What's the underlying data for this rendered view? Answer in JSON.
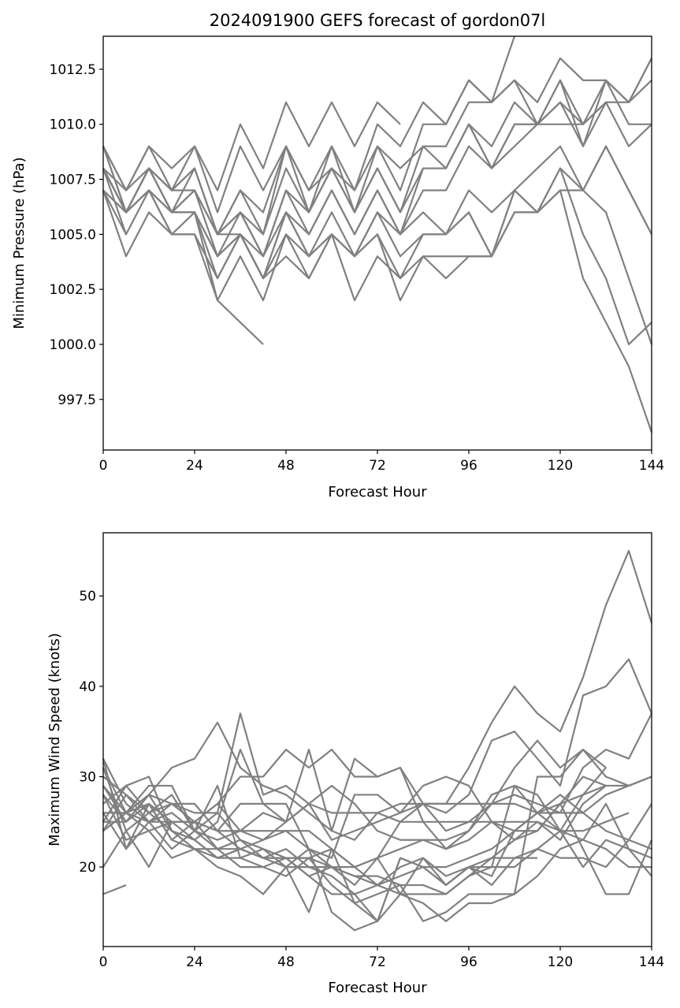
{
  "chart_data": [
    {
      "type": "line",
      "title": "2024091900 GEFS forecast of gordon07l",
      "xlabel": "Forecast Hour",
      "ylabel": "Minimum Pressure (hPa)",
      "xlim": [
        0,
        144
      ],
      "ylim": [
        995.2,
        1014.0
      ],
      "xticks": [
        0,
        24,
        48,
        72,
        96,
        120,
        144
      ],
      "yticks": [
        997.5,
        1000.0,
        1002.5,
        1005.0,
        1007.5,
        1010.0,
        1012.5
      ],
      "xtick_labels": [
        "0",
        "24",
        "48",
        "72",
        "96",
        "120",
        "144"
      ],
      "ytick_labels": [
        "997.5",
        "1000.0",
        "1002.5",
        "1005.0",
        "1007.5",
        "1010.0",
        "1012.5"
      ],
      "line_color": "#808080",
      "x": [
        0,
        6,
        12,
        18,
        24,
        30,
        36,
        42,
        48,
        54,
        60,
        66,
        72,
        78,
        84,
        90,
        96,
        102,
        108,
        114,
        120,
        126,
        132,
        138,
        144
      ],
      "series": [
        {
          "values": [
            1009,
            1007,
            1009,
            1008,
            1009,
            1007,
            1010,
            1008,
            1011,
            1009,
            1011,
            1009,
            1011,
            1010,
            null,
            null,
            null,
            null,
            null,
            null,
            null,
            null,
            null,
            null,
            null
          ]
        },
        {
          "values": [
            1009,
            1007,
            1009,
            1007,
            1009,
            1006,
            1009,
            1007,
            1009,
            1007,
            1009,
            1007,
            1010,
            1009,
            1011,
            1010,
            1012,
            1011,
            1014,
            null,
            null,
            null,
            null,
            null,
            null
          ]
        },
        {
          "values": [
            1008,
            1007,
            1008,
            1007,
            1008,
            1005,
            1007,
            1005,
            1009,
            1006,
            1009,
            1006,
            1009,
            1007,
            1010,
            1010,
            1012,
            1011,
            1012,
            1011,
            1013,
            1012,
            1012,
            1011,
            1013
          ]
        },
        {
          "values": [
            1009,
            1006,
            1008,
            1007,
            1008,
            1005,
            1007,
            1006,
            1009,
            1007,
            1008,
            1007,
            1009,
            1008,
            1009,
            1009,
            1011,
            1011,
            1012,
            1010,
            1012,
            1010,
            1012,
            1010,
            1010
          ]
        },
        {
          "values": [
            1008,
            1006,
            1008,
            1006,
            1008,
            1005,
            1006,
            1005,
            1008,
            1006,
            1008,
            1006,
            1008,
            1006,
            1009,
            1008,
            1010,
            1009,
            1011,
            1010,
            1011,
            1010,
            1011,
            1011,
            1012
          ]
        },
        {
          "values": [
            1008,
            1006,
            1008,
            1006,
            1007,
            1005,
            1006,
            1004,
            1007,
            1006,
            1008,
            1006,
            1008,
            1006,
            1008,
            1008,
            1010,
            1008,
            1010,
            1010,
            1011,
            1009,
            1012,
            1011,
            1013
          ]
        },
        {
          "values": [
            1007,
            1006,
            1007,
            1006,
            1007,
            1004,
            1006,
            1004,
            1007,
            1005,
            1007,
            1005,
            1007,
            1005,
            1007,
            1007,
            1009,
            1008,
            1010,
            1010,
            1012,
            1009,
            1011,
            1009,
            1010
          ]
        },
        {
          "values": [
            1008,
            1005,
            1007,
            1006,
            1006,
            1004,
            1005,
            1004,
            1006,
            1005,
            1007,
            1005,
            1007,
            1005,
            1008,
            1008,
            1010,
            1008,
            1009,
            1010,
            1010,
            1010,
            1011,
            null,
            null
          ]
        },
        {
          "values": [
            1007,
            1004,
            1006,
            1005,
            1005,
            1003,
            1005,
            1003,
            1006,
            1004,
            1006,
            1004,
            1006,
            1005,
            1006,
            1005,
            1007,
            1006,
            1007,
            1008,
            1009,
            1007,
            1009,
            1007,
            1005
          ]
        },
        {
          "values": [
            1008,
            1006,
            1007,
            1006,
            1006,
            1003,
            1005,
            1003,
            1005,
            1004,
            1005,
            1004,
            1006,
            1004,
            1005,
            1005,
            1006,
            1004,
            1007,
            1006,
            1008,
            1005,
            1003,
            1000,
            1001
          ]
        },
        {
          "values": [
            1007,
            1006,
            1007,
            1005,
            1006,
            1002,
            1004,
            1002,
            1005,
            1003,
            1005,
            1002,
            1004,
            1003,
            1005,
            1005,
            1006,
            1004,
            1006,
            1006,
            1007,
            1003,
            1001,
            999,
            996
          ]
        },
        {
          "values": [
            1008,
            1006,
            1007,
            1005,
            1005,
            1002,
            1001,
            1000,
            null,
            null,
            null,
            null,
            null,
            null,
            null,
            null,
            null,
            null,
            null,
            null,
            null,
            null,
            null,
            null,
            null
          ]
        },
        {
          "values": [
            1007,
            1005,
            null,
            null,
            null,
            null,
            null,
            null,
            null,
            null,
            null,
            null,
            null,
            null,
            null,
            null,
            null,
            null,
            null,
            null,
            null,
            null,
            null,
            null,
            null
          ]
        },
        {
          "values": [
            1008,
            1006,
            1008,
            1006,
            1006,
            1004,
            1005,
            1003,
            1006,
            1004,
            1005,
            1004,
            1005,
            1002,
            1004,
            1003,
            1004,
            1004,
            1007,
            1006,
            1008,
            1007,
            1006,
            1003,
            1000
          ]
        },
        {
          "values": [
            1009,
            1006,
            1008,
            1007,
            1007,
            1005,
            1005,
            1003,
            1004,
            1003,
            1005,
            1004,
            1005,
            1003,
            1004,
            1004,
            1004,
            1004,
            1006,
            1006,
            1007,
            1007,
            1009,
            1007,
            1005
          ]
        }
      ]
    },
    {
      "type": "line",
      "title": "",
      "xlabel": "Forecast Hour",
      "ylabel": "Maximum Wind Speed (knots)",
      "xlim": [
        0,
        144
      ],
      "ylim": [
        11.2,
        57.0
      ],
      "xticks": [
        0,
        24,
        48,
        72,
        96,
        120,
        144
      ],
      "yticks": [
        20,
        30,
        40,
        50
      ],
      "xtick_labels": [
        "0",
        "24",
        "48",
        "72",
        "96",
        "120",
        "144"
      ],
      "ytick_labels": [
        "20",
        "30",
        "40",
        "50"
      ],
      "line_color": "#808080",
      "x": [
        0,
        6,
        12,
        18,
        24,
        30,
        36,
        42,
        48,
        54,
        60,
        66,
        72,
        78,
        84,
        90,
        96,
        102,
        108,
        114,
        120,
        126,
        132,
        138,
        144
      ],
      "series": [
        {
          "values": [
            32,
            27,
            25,
            27,
            25,
            27,
            24,
            26,
            25,
            27,
            23,
            24,
            25,
            26,
            27,
            27,
            31,
            36,
            40,
            37,
            35,
            41,
            49,
            55,
            47
          ]
        },
        {
          "values": [
            29,
            26,
            28,
            31,
            32,
            36,
            31,
            29,
            28,
            26,
            24,
            23,
            26,
            27,
            27,
            26,
            28,
            34,
            35,
            32,
            29,
            39,
            40,
            43,
            37
          ]
        },
        {
          "values": [
            28,
            25,
            28,
            27,
            26,
            26,
            37,
            28,
            29,
            27,
            29,
            27,
            24,
            23,
            23,
            23,
            24,
            27,
            31,
            34,
            31,
            33,
            30,
            29,
            30
          ]
        },
        {
          "values": [
            31,
            26,
            27,
            23,
            25,
            27,
            30,
            30,
            33,
            31,
            33,
            30,
            30,
            31,
            27,
            24,
            25,
            27,
            28,
            27,
            26,
            31,
            33,
            32,
            37
          ]
        },
        {
          "values": [
            25,
            25,
            28,
            24,
            23,
            25,
            33,
            27,
            25,
            33,
            24,
            32,
            30,
            31,
            25,
            22,
            24,
            28,
            29,
            26,
            27,
            28,
            31,
            null,
            null
          ]
        },
        {
          "values": [
            26,
            26,
            29,
            29,
            24,
            23,
            24,
            23,
            25,
            27,
            26,
            26,
            26,
            25,
            25,
            25,
            25,
            25,
            25,
            25,
            24,
            24,
            25,
            26,
            null
          ]
        },
        {
          "values": [
            24,
            28,
            25,
            25,
            25,
            24,
            27,
            27,
            27,
            22,
            21,
            28,
            28,
            26,
            29,
            30,
            29,
            25,
            23,
            25,
            23,
            27,
            29,
            29,
            30
          ]
        },
        {
          "values": [
            27,
            29,
            26,
            27,
            27,
            24,
            24,
            24,
            24,
            24,
            22,
            20,
            21,
            25,
            27,
            27,
            27,
            27,
            27,
            26,
            26,
            26,
            28,
            29,
            30
          ]
        },
        {
          "values": [
            30,
            28,
            26,
            28,
            24,
            26,
            23,
            21,
            21,
            21,
            22,
            20,
            21,
            22,
            23,
            22,
            23,
            25,
            24,
            26,
            28,
            26,
            24,
            23,
            27
          ]
        },
        {
          "values": [
            20,
            24,
            26,
            24,
            23,
            21,
            22,
            23,
            24,
            22,
            20,
            19,
            18,
            19,
            20,
            20,
            21,
            22,
            24,
            26,
            24,
            28,
            29,
            null,
            null
          ]
        },
        {
          "values": [
            24,
            26,
            24,
            25,
            25,
            24,
            22,
            21,
            22,
            20,
            19,
            17,
            18,
            20,
            21,
            19,
            20,
            21,
            23,
            24,
            27,
            22,
            17,
            17,
            23
          ]
        },
        {
          "values": [
            26,
            22,
            27,
            25,
            23,
            21,
            22,
            21,
            20,
            20,
            20,
            20,
            18,
            17,
            17,
            17,
            19,
            20,
            20,
            22,
            24,
            23,
            22,
            20,
            20
          ]
        },
        {
          "values": [
            29,
            25,
            27,
            23,
            22,
            21,
            21,
            22,
            21,
            19,
            17,
            17,
            14,
            17,
            16,
            14,
            16,
            16,
            17,
            19,
            22,
            23,
            27,
            22,
            19
          ]
        },
        {
          "values": [
            28,
            23,
            24,
            21,
            22,
            20,
            19,
            17,
            20,
            15,
            22,
            16,
            14,
            21,
            20,
            18,
            20,
            18,
            21,
            22,
            21,
            21,
            20,
            23,
            22
          ]
        },
        {
          "values": [
            24,
            26,
            25,
            22,
            24,
            22,
            20,
            20,
            19,
            21,
            18,
            16,
            17,
            18,
            14,
            15,
            17,
            17,
            17,
            30,
            30,
            33,
            31,
            null,
            null
          ]
        },
        {
          "values": [
            17,
            18,
            null,
            null,
            null,
            null,
            null,
            null,
            null,
            null,
            null,
            null,
            null,
            null,
            null,
            null,
            null,
            null,
            null,
            null,
            null,
            null,
            null,
            null,
            null
          ]
        },
        {
          "values": [
            25,
            29,
            30,
            24,
            22,
            22,
            23,
            22,
            20,
            22,
            15,
            13,
            14,
            21,
            20,
            18,
            20,
            20,
            29,
            28,
            24,
            20,
            23,
            22,
            21
          ]
        },
        {
          "values": [
            32,
            22,
            25,
            26,
            24,
            29,
            21,
            20,
            21,
            19,
            20,
            19,
            19,
            18,
            18,
            17,
            19,
            21,
            21,
            21,
            null,
            null,
            null,
            null,
            null
          ]
        },
        {
          "values": [
            31,
            24,
            20,
            25,
            25,
            22,
            22,
            21,
            21,
            21,
            20,
            18,
            21,
            17,
            21,
            18,
            20,
            19,
            24,
            24,
            27,
            30,
            29,
            null,
            null
          ]
        }
      ]
    }
  ]
}
